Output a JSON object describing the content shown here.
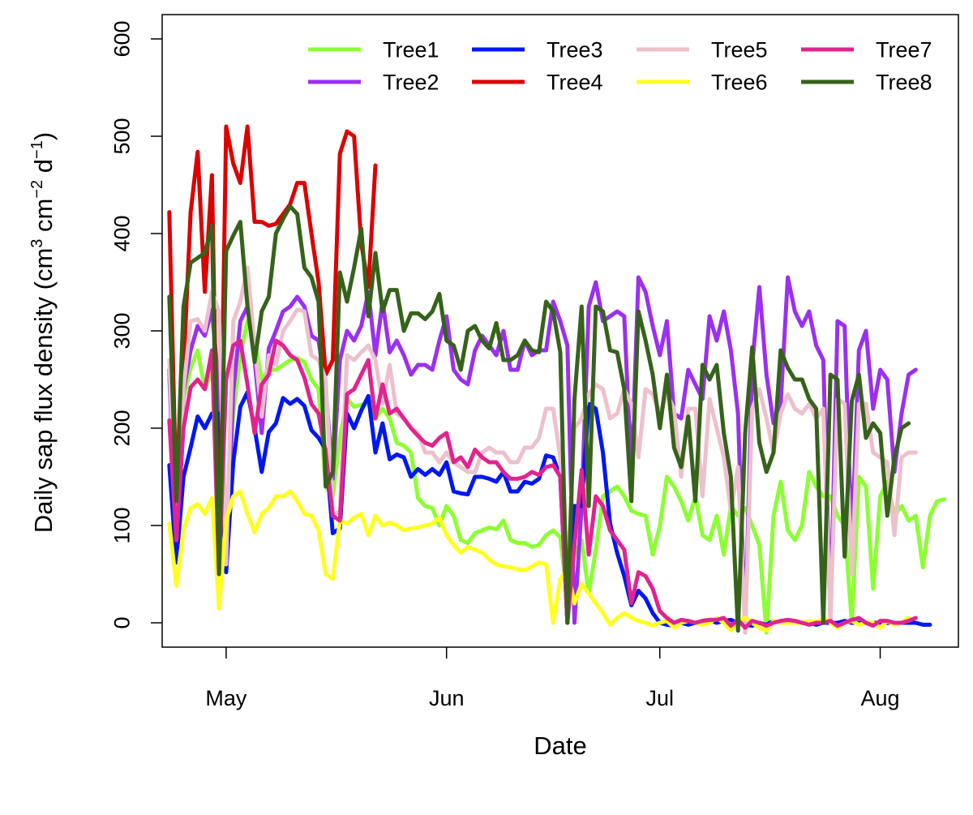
{
  "chart_data": {
    "type": "line",
    "title": "",
    "xlabel": "Date",
    "ylabel": {
      "main": "Daily sap flux density (cm",
      "sup1": "3",
      "mid1": " cm",
      "sup2": "−2",
      "mid2": " d",
      "sup3": "−1",
      "end": ")"
    },
    "xlim": [
      0,
      112
    ],
    "ylim": [
      -25,
      625
    ],
    "x_ticks": [
      {
        "label": "May",
        "day": 9
      },
      {
        "label": "Jun",
        "day": 40
      },
      {
        "label": "Jul",
        "day": 70
      },
      {
        "label": "Aug",
        "day": 101
      }
    ],
    "y_ticks": [
      0,
      100,
      200,
      300,
      400,
      500,
      600
    ],
    "legend_position": "top",
    "x_day_note": "day index 0 = Apr 22",
    "series": [
      {
        "name": "Tree1",
        "color": "#8CFF33",
        "values": [
          250,
          125,
          230,
          262,
          280,
          240,
          258,
          260,
          100,
          215,
          275,
          310,
          290,
          250,
          260,
          260,
          265,
          270,
          272,
          268,
          250,
          240,
          140,
          130,
          190,
          230,
          222,
          224,
          225,
          210,
          220,
          210,
          185,
          182,
          175,
          128,
          120,
          118,
          100,
          120,
          110,
          85,
          82,
          92,
          95,
          98,
          96,
          105,
          85,
          82,
          82,
          78,
          80,
          90,
          95,
          88,
          25,
          70,
          85,
          30,
          75,
          130,
          135,
          140,
          130,
          115,
          112,
          110,
          70,
          100,
          150,
          140,
          125,
          105,
          130,
          90,
          85,
          110,
          70,
          120,
          110,
          118,
          100,
          80,
          -10,
          110,
          145,
          95,
          85,
          100,
          155,
          140,
          130,
          130,
          110,
          100,
          0,
          150,
          140,
          35,
          130,
          145,
          110,
          120,
          105,
          110,
          57,
          110,
          125,
          127
        ]
      },
      {
        "name": "Tree2",
        "color": "#9B30F0",
        "values": [
          260,
          62,
          238,
          280,
          305,
          295,
          322,
          240,
          62,
          238,
          310,
          325,
          270,
          195,
          282,
          300,
          320,
          325,
          335,
          325,
          295,
          290,
          240,
          148,
          270,
          300,
          290,
          305,
          340,
          275,
          330,
          278,
          290,
          275,
          255,
          265,
          265,
          260,
          290,
          315,
          260,
          250,
          245,
          280,
          295,
          285,
          275,
          300,
          260,
          260,
          290,
          275,
          280,
          280,
          330,
          310,
          285,
          0,
          120,
          325,
          350,
          310,
          315,
          320,
          315,
          150,
          355,
          340,
          305,
          275,
          310,
          215,
          210,
          260,
          245,
          230,
          315,
          290,
          320,
          280,
          215,
          -10,
          265,
          345,
          255,
          205,
          225,
          355,
          320,
          305,
          320,
          285,
          270,
          0,
          310,
          305,
          80,
          280,
          300,
          220,
          260,
          250,
          155,
          215,
          255,
          260
        ]
      },
      {
        "name": "Tree3",
        "color": "#0018F0",
        "values": [
          162,
          62,
          150,
          180,
          212,
          200,
          215,
          215,
          52,
          165,
          222,
          237,
          200,
          155,
          196,
          205,
          231,
          225,
          230,
          223,
          198,
          190,
          178,
          92,
          97,
          215,
          200,
          218,
          233,
          175,
          205,
          168,
          173,
          170,
          150,
          158,
          152,
          158,
          152,
          165,
          135,
          133,
          132,
          150,
          150,
          148,
          145,
          155,
          135,
          135,
          145,
          143,
          148,
          172,
          170,
          150,
          0,
          120,
          120,
          225,
          220,
          175,
          102,
          72,
          48,
          18,
          33,
          25,
          10,
          0,
          -2,
          -3,
          0,
          -2,
          0,
          2,
          3,
          0,
          2,
          3,
          0,
          -2,
          -3,
          0,
          -2,
          2,
          0,
          0,
          0,
          0,
          0,
          -2,
          0,
          0,
          0,
          2,
          0,
          0,
          0,
          0,
          0,
          0,
          0,
          0,
          0,
          0,
          -2,
          -2
        ]
      },
      {
        "name": "Tree4",
        "color": "#DD0000",
        "values": [
          422,
          125,
          260,
          422,
          484,
          340,
          460,
          50,
          510,
          472,
          452,
          510,
          412,
          412,
          408,
          410,
          420,
          430,
          452,
          452,
          400,
          350,
          255,
          270,
          482,
          505,
          500,
          390,
          345,
          470
        ]
      },
      {
        "name": "Tree5",
        "color": "#EDC0CC",
        "values": [
          270,
          85,
          240,
          310,
          312,
          300,
          340,
          320,
          60,
          310,
          330,
          365,
          285,
          212,
          275,
          265,
          300,
          310,
          322,
          320,
          275,
          270,
          250,
          110,
          115,
          275,
          270,
          278,
          285,
          270,
          225,
          265,
          215,
          210,
          200,
          195,
          175,
          175,
          165,
          175,
          165,
          160,
          155,
          155,
          175,
          180,
          175,
          175,
          165,
          165,
          180,
          180,
          190,
          220,
          220,
          170,
          50,
          200,
          210,
          235,
          245,
          240,
          210,
          215,
          240,
          225,
          170,
          240,
          235,
          215,
          235,
          220,
          150,
          220,
          220,
          130,
          230,
          200,
          170,
          115,
          160,
          -10,
          220,
          240,
          210,
          175,
          215,
          235,
          220,
          215,
          225,
          210,
          220,
          0,
          230,
          225,
          50,
          225,
          225,
          175,
          170,
          165,
          90,
          170,
          175,
          175
        ]
      },
      {
        "name": "Tree6",
        "color": "#FFFF20",
        "values": [
          102,
          38,
          95,
          118,
          122,
          112,
          128,
          15,
          105,
          130,
          135,
          112,
          93,
          112,
          118,
          130,
          130,
          135,
          125,
          112,
          110,
          95,
          50,
          45,
          105,
          102,
          108,
          112,
          90,
          110,
          100,
          103,
          100,
          95,
          97,
          98,
          100,
          102,
          108,
          90,
          80,
          72,
          78,
          75,
          72,
          65,
          60,
          58,
          57,
          55,
          54,
          58,
          62,
          60,
          0,
          45,
          55,
          20,
          40,
          30,
          20,
          10,
          -2,
          5,
          10,
          5,
          2,
          0,
          -3,
          0,
          2,
          -5,
          0,
          2,
          0,
          -2,
          0,
          5,
          0,
          -8,
          2,
          5,
          0,
          -5,
          -8,
          2,
          0,
          0,
          0,
          0,
          2,
          0,
          5,
          0,
          -5,
          0,
          2,
          -2,
          0,
          0,
          -5,
          2,
          -2,
          0,
          5
        ]
      },
      {
        "name": "Tree7",
        "color": "#E0248F",
        "values": [
          208,
          85,
          200,
          242,
          250,
          240,
          280,
          50,
          250,
          285,
          290,
          245,
          195,
          245,
          255,
          290,
          285,
          275,
          270,
          252,
          225,
          215,
          175,
          110,
          105,
          235,
          240,
          255,
          270,
          210,
          245,
          215,
          220,
          210,
          200,
          192,
          185,
          182,
          190,
          195,
          165,
          170,
          160,
          178,
          170,
          165,
          165,
          155,
          148,
          148,
          150,
          155,
          152,
          160,
          162,
          150,
          0,
          80,
          157,
          70,
          130,
          120,
          95,
          85,
          75,
          20,
          52,
          48,
          35,
          12,
          5,
          0,
          3,
          2,
          0,
          2,
          3,
          3,
          5,
          -3,
          3,
          -5,
          2,
          0,
          -3,
          0,
          2,
          3,
          2,
          0,
          -2,
          0,
          0,
          2,
          -3,
          0,
          3,
          5,
          0,
          -3,
          2,
          2,
          0,
          0,
          2,
          5
        ]
      },
      {
        "name": "Tree8",
        "color": "#36621A",
        "values": [
          335,
          125,
          325,
          370,
          375,
          380,
          408,
          50,
          382,
          398,
          412,
          325,
          268,
          320,
          335,
          400,
          415,
          428,
          420,
          365,
          355,
          330,
          140,
          155,
          360,
          330,
          365,
          405,
          315,
          380,
          320,
          342,
          342,
          300,
          318,
          318,
          312,
          320,
          338,
          290,
          285,
          260,
          300,
          305,
          290,
          282,
          308,
          270,
          270,
          275,
          290,
          280,
          278,
          330,
          320,
          278,
          0,
          230,
          325,
          120,
          325,
          320,
          280,
          278,
          240,
          125,
          320,
          290,
          255,
          200,
          255,
          180,
          160,
          212,
          125,
          265,
          250,
          265,
          195,
          150,
          -8,
          195,
          283,
          185,
          155,
          175,
          280,
          262,
          250,
          250,
          230,
          220,
          0,
          255,
          250,
          68,
          228,
          255,
          190,
          205,
          195,
          110,
          170,
          200,
          205
        ]
      }
    ]
  }
}
